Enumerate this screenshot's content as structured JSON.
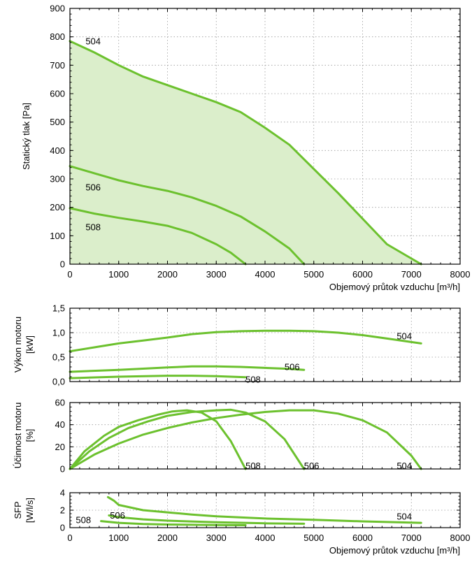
{
  "colors": {
    "curve": "#6cc12e",
    "fill": "#dbeecb"
  },
  "chart_data": [
    {
      "type": "line",
      "id": "pressure",
      "ylabel": "Statický tlak [Pa]",
      "xlabel": "Objemový průtok vzduchu [m³/h]",
      "xlim": [
        0,
        8000
      ],
      "ylim": [
        0,
        900
      ],
      "xticks": [
        0,
        1000,
        2000,
        3000,
        4000,
        5000,
        6000,
        7000,
        8000
      ],
      "xtick_labels": [
        "0",
        "1000",
        "2000",
        "3000",
        "4000",
        "5000",
        "6000",
        "7000",
        "8000"
      ],
      "yticks": [
        0,
        100,
        200,
        300,
        400,
        500,
        600,
        700,
        800,
        900
      ],
      "ytick_labels": [
        "0",
        "100",
        "200",
        "300",
        "400",
        "500",
        "600",
        "700",
        "800",
        "900"
      ],
      "grid": true,
      "shaded_area": "under 504",
      "series": [
        {
          "name": "504",
          "label_at": [
            320,
            785
          ],
          "points": [
            [
              0,
              785
            ],
            [
              500,
              745
            ],
            [
              1000,
              700
            ],
            [
              1500,
              660
            ],
            [
              2000,
              630
            ],
            [
              2500,
              600
            ],
            [
              3000,
              570
            ],
            [
              3500,
              535
            ],
            [
              4000,
              480
            ],
            [
              4500,
              420
            ],
            [
              5000,
              335
            ],
            [
              5500,
              250
            ],
            [
              6000,
              160
            ],
            [
              6500,
              70
            ],
            [
              7200,
              0
            ]
          ]
        },
        {
          "name": "506",
          "label_at": [
            320,
            270
          ],
          "points": [
            [
              0,
              345
            ],
            [
              500,
              320
            ],
            [
              1000,
              295
            ],
            [
              1500,
              275
            ],
            [
              2000,
              258
            ],
            [
              2500,
              235
            ],
            [
              3000,
              205
            ],
            [
              3500,
              168
            ],
            [
              4000,
              115
            ],
            [
              4500,
              55
            ],
            [
              4800,
              0
            ]
          ]
        },
        {
          "name": "508",
          "label_at": [
            320,
            130
          ],
          "points": [
            [
              0,
              197
            ],
            [
              500,
              178
            ],
            [
              1000,
              163
            ],
            [
              1500,
              150
            ],
            [
              2000,
              135
            ],
            [
              2500,
              110
            ],
            [
              3000,
              70
            ],
            [
              3300,
              40
            ],
            [
              3600,
              0
            ]
          ]
        }
      ]
    },
    {
      "type": "line",
      "id": "power",
      "ylabel": "Výkon motoru [kW]",
      "xlim": [
        0,
        8000
      ],
      "ylim": [
        0,
        1.5
      ],
      "xticks": [
        0,
        1000,
        2000,
        3000,
        4000,
        5000,
        6000,
        7000,
        8000
      ],
      "yticks": [
        0,
        0.5,
        1.0,
        1.5
      ],
      "ytick_labels": [
        "0,0",
        "0,5",
        "1,0",
        "1,5"
      ],
      "grid": true,
      "series": [
        {
          "name": "504",
          "label_at": [
            6700,
            0.93
          ],
          "points": [
            [
              0,
              0.62
            ],
            [
              500,
              0.7
            ],
            [
              1000,
              0.78
            ],
            [
              1500,
              0.84
            ],
            [
              2000,
              0.9
            ],
            [
              2500,
              0.97
            ],
            [
              3000,
              1.01
            ],
            [
              3500,
              1.03
            ],
            [
              4000,
              1.04
            ],
            [
              4500,
              1.04
            ],
            [
              5000,
              1.03
            ],
            [
              5500,
              1.0
            ],
            [
              6000,
              0.95
            ],
            [
              6500,
              0.88
            ],
            [
              7200,
              0.78
            ]
          ]
        },
        {
          "name": "506",
          "label_at": [
            4400,
            0.3
          ],
          "points": [
            [
              0,
              0.2
            ],
            [
              1000,
              0.24
            ],
            [
              2000,
              0.29
            ],
            [
              2500,
              0.31
            ],
            [
              3000,
              0.31
            ],
            [
              3500,
              0.3
            ],
            [
              4000,
              0.28
            ],
            [
              4500,
              0.26
            ],
            [
              4800,
              0.24
            ]
          ]
        },
        {
          "name": "508",
          "label_at": [
            3600,
            0.04
          ],
          "points": [
            [
              0,
              0.07
            ],
            [
              1000,
              0.1
            ],
            [
              2000,
              0.12
            ],
            [
              2500,
              0.12
            ],
            [
              3000,
              0.11
            ],
            [
              3600,
              0.09
            ]
          ]
        }
      ]
    },
    {
      "type": "line",
      "id": "efficiency",
      "ylabel": "Účinnost motoru [%]",
      "xlim": [
        0,
        8000
      ],
      "ylim": [
        0,
        60
      ],
      "xticks": [
        0,
        1000,
        2000,
        3000,
        4000,
        5000,
        6000,
        7000,
        8000
      ],
      "yticks": [
        0,
        20,
        40,
        60
      ],
      "ytick_labels": [
        "0",
        "20",
        "40",
        "60"
      ],
      "grid": true,
      "series": [
        {
          "name": "504",
          "label_at": [
            6700,
            3
          ],
          "points": [
            [
              0,
              0
            ],
            [
              500,
              13
            ],
            [
              1000,
              23
            ],
            [
              1500,
              31
            ],
            [
              2000,
              37
            ],
            [
              2500,
              42
            ],
            [
              3000,
              46
            ],
            [
              3500,
              49
            ],
            [
              4000,
              51.5
            ],
            [
              4500,
              53
            ],
            [
              5000,
              53
            ],
            [
              5500,
              50
            ],
            [
              6000,
              44
            ],
            [
              6500,
              33
            ],
            [
              7000,
              12
            ],
            [
              7200,
              0
            ]
          ]
        },
        {
          "name": "506",
          "label_at": [
            4800,
            3
          ],
          "points": [
            [
              0,
              0
            ],
            [
              400,
              16
            ],
            [
              800,
              28
            ],
            [
              1200,
              37
            ],
            [
              1600,
              43
            ],
            [
              2000,
              48
            ],
            [
              2500,
              51.5
            ],
            [
              3000,
              53
            ],
            [
              3300,
              53.5
            ],
            [
              3600,
              51
            ],
            [
              4000,
              43
            ],
            [
              4400,
              27
            ],
            [
              4800,
              0
            ]
          ]
        },
        {
          "name": "508",
          "label_at": [
            3600,
            3
          ],
          "points": [
            [
              0,
              0
            ],
            [
              300,
              16
            ],
            [
              700,
              30
            ],
            [
              1000,
              38
            ],
            [
              1400,
              44
            ],
            [
              1800,
              49
            ],
            [
              2100,
              52
            ],
            [
              2400,
              53
            ],
            [
              2700,
              51
            ],
            [
              3000,
              43
            ],
            [
              3300,
              25
            ],
            [
              3600,
              0
            ]
          ]
        }
      ]
    },
    {
      "type": "line",
      "id": "sfp",
      "ylabel": "SFP [W/l/s]",
      "xlabel": "Objemový průtok vzduchu [m³/h]",
      "xlim": [
        0,
        8000
      ],
      "ylim": [
        0,
        4
      ],
      "xticks": [
        0,
        1000,
        2000,
        3000,
        4000,
        5000,
        6000,
        7000,
        8000
      ],
      "xtick_labels": [
        "0",
        "1000",
        "2000",
        "3000",
        "4000",
        "5000",
        "6000",
        "7000",
        "8000"
      ],
      "yticks": [
        0,
        2,
        4
      ],
      "ytick_labels": [
        "0",
        "2",
        "4"
      ],
      "grid": true,
      "series": [
        {
          "name": "504",
          "label_at": [
            6700,
            1.3
          ],
          "points": [
            [
              780,
              3.5
            ],
            [
              900,
              3.1
            ],
            [
              1000,
              2.6
            ],
            [
              1500,
              2.0
            ],
            [
              2000,
              1.75
            ],
            [
              2500,
              1.5
            ],
            [
              3000,
              1.3
            ],
            [
              4000,
              1.05
            ],
            [
              5000,
              0.9
            ],
            [
              6000,
              0.72
            ],
            [
              7200,
              0.55
            ]
          ]
        },
        {
          "name": "506",
          "label_at": [
            820,
            1.4
          ],
          "points": [
            [
              800,
              1.4
            ],
            [
              1000,
              1.2
            ],
            [
              1500,
              0.95
            ],
            [
              2000,
              0.8
            ],
            [
              3000,
              0.62
            ],
            [
              4000,
              0.5
            ],
            [
              4800,
              0.45
            ]
          ]
        },
        {
          "name": "508",
          "label_at": [
            120,
            0.9
          ],
          "points": [
            [
              640,
              0.75
            ],
            [
              1000,
              0.55
            ],
            [
              1500,
              0.42
            ],
            [
              2000,
              0.36
            ],
            [
              3000,
              0.3
            ],
            [
              3600,
              0.28
            ]
          ]
        }
      ]
    }
  ]
}
